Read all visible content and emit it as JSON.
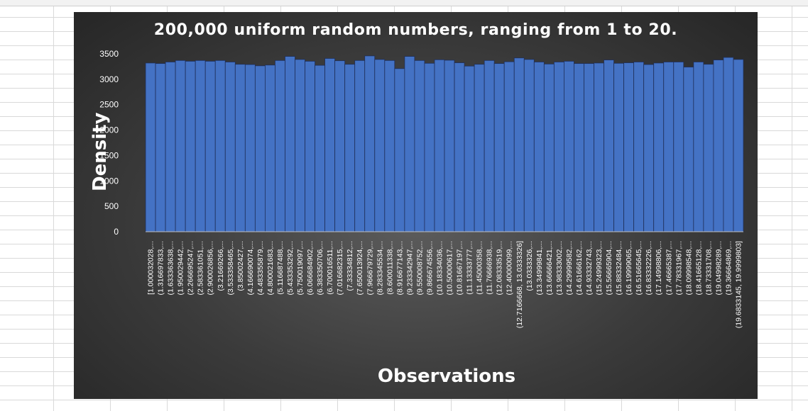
{
  "chart_data": {
    "type": "bar",
    "title": "200,000 uniform random numbers, ranging from 1 to 20.",
    "xlabel": "Observations",
    "ylabel": "Density",
    "ylim": [
      0,
      3500
    ],
    "yticks": [
      0,
      500,
      1000,
      1500,
      2000,
      2500,
      3000,
      3500
    ],
    "grid": false,
    "legend": "none",
    "bar_color": "#4472c4",
    "categories": [
      "[1.000032028,...",
      "(1.316697833,...",
      "(1.633363638,...",
      "(1.950029442,...",
      "(2.266695247,...",
      "(2.583361051,...",
      "(2.900026856,...",
      "(3.21669266,...",
      "(3.533358465,...",
      "(3.85002427,...",
      "(4.166690074,...",
      "(4.483355879,...",
      "(4.800021683,...",
      "(5.116687488,...",
      "(5.433353292,...",
      "(5.750019097,...",
      "(6.066684902,...",
      "(6.383350706,...",
      "(6.700016511,...",
      "(7.016682315,...",
      "(7.33334812,...",
      "(7.650013924,...",
      "(7.966679729,...",
      "(8.283345534,...",
      "(8.600011338,...",
      "(8.916677143,...",
      "(9.233342947,...",
      "(9.550008752,...",
      "(9.866674556,...",
      "(10.18334036,...",
      "(10.50000617,...",
      "(10.81667197,...",
      "(11.13333777,...",
      "(11.45000358,...",
      "(11.76666938,...",
      "(12.08333519,...",
      "(12.40000099,...",
      "(12.7166668, 13.0333326]",
      "(13.0333326,...",
      "(13.34999841,...",
      "(13.66666421,...",
      "(13.98333002,...",
      "(14.29999582,...",
      "(14.61666162,...",
      "(14.93332743,...",
      "(15.24999323,...",
      "(15.56665904,...",
      "(15.88332484,...",
      "(16.19999065,...",
      "(16.51665645,...",
      "(16.83332226,...",
      "(17.14998806,...",
      "(17.46665387,...",
      "(17.78331967,...",
      "(18.09998548,...",
      "(18.41665128,...",
      "(18.73331708,...",
      "(19.04998289,...",
      "(19.36664869,...",
      "(19.6833145, 19.9999803]"
    ],
    "values": [
      3320,
      3310,
      3340,
      3370,
      3355,
      3370,
      3355,
      3370,
      3340,
      3295,
      3290,
      3265,
      3280,
      3370,
      3450,
      3390,
      3355,
      3275,
      3410,
      3365,
      3295,
      3370,
      3460,
      3390,
      3370,
      3210,
      3450,
      3370,
      3315,
      3385,
      3375,
      3325,
      3260,
      3295,
      3370,
      3310,
      3345,
      3420,
      3390,
      3340,
      3300,
      3340,
      3355,
      3310,
      3310,
      3320,
      3380,
      3315,
      3325,
      3340,
      3290,
      3320,
      3340,
      3340,
      3240,
      3340,
      3295,
      3380,
      3430,
      3390
    ]
  }
}
